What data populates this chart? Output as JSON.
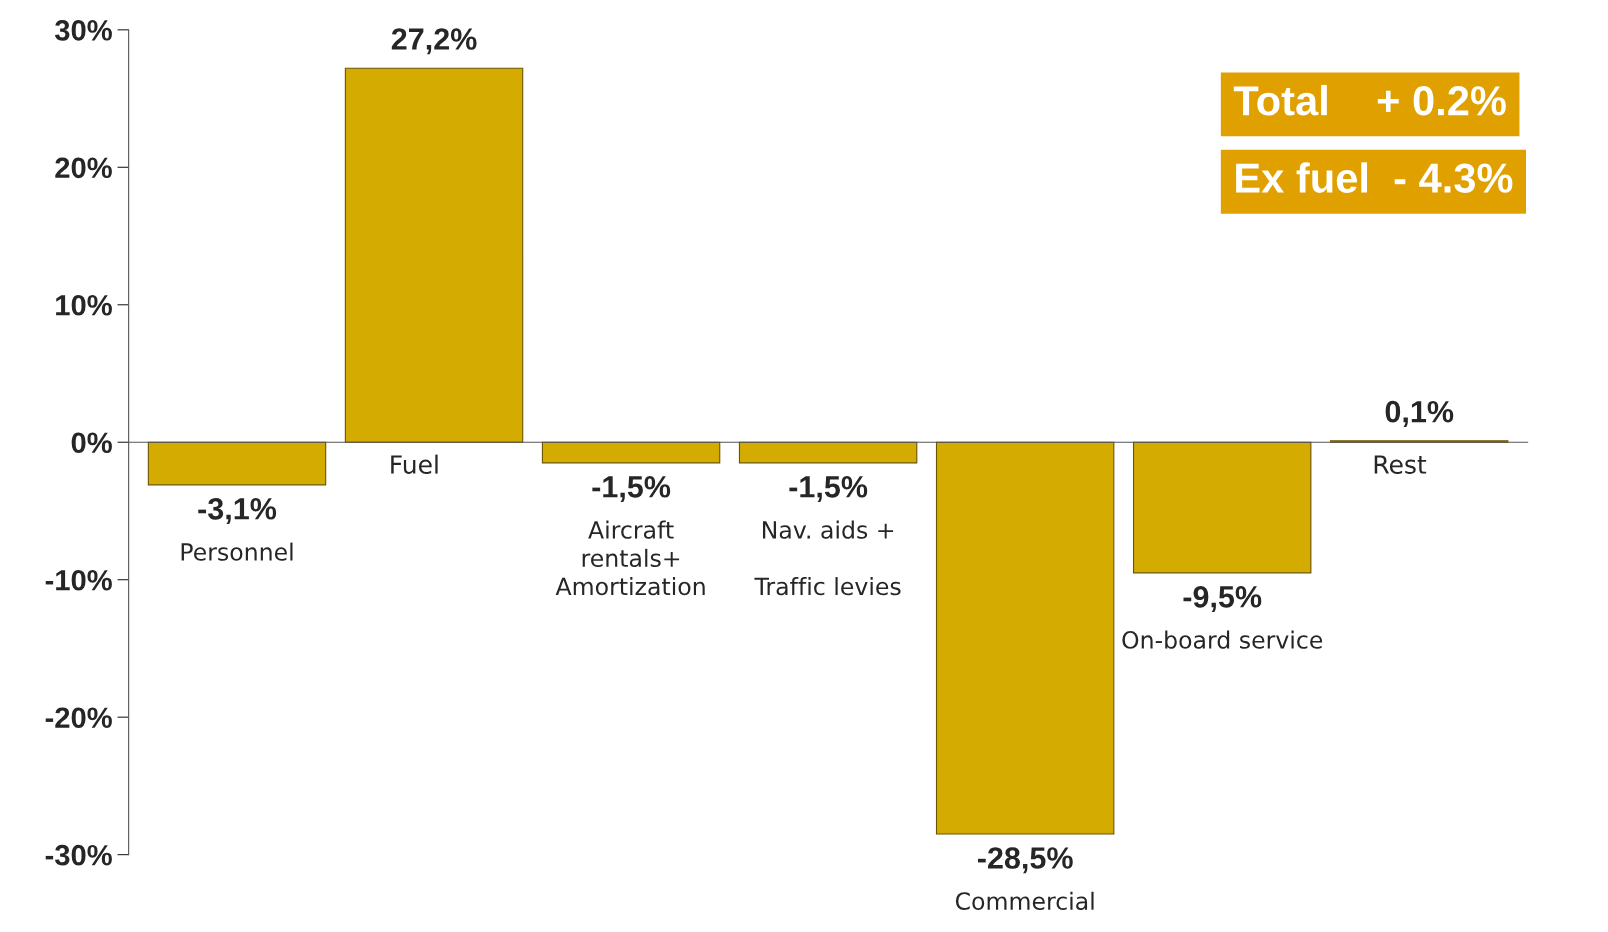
{
  "chart_data": {
    "type": "bar",
    "categories": [
      "Personnel",
      "Fuel",
      "Aircraft\nrentals+\nAmortization",
      "Nav. aids +\n\nTraffic levies",
      "Commercial",
      "On-board service",
      "Rest"
    ],
    "values": [
      -3.1,
      27.2,
      -1.5,
      -1.5,
      -28.5,
      -9.5,
      0.1
    ],
    "value_labels": [
      "-3,1%",
      "27,2%",
      "-1,5%",
      "-1,5%",
      "-28,5%",
      "-9,5%",
      "0,1%"
    ],
    "color": "#d4ab00",
    "ylim": [
      -30,
      30
    ],
    "yticks": [
      {
        "value": -30,
        "label": "-30%"
      },
      {
        "value": -20,
        "label": "-20%"
      },
      {
        "value": -10,
        "label": "-10%"
      },
      {
        "value": 0,
        "label": "0%"
      },
      {
        "value": 10,
        "label": "10%"
      },
      {
        "value": 20,
        "label": "20%"
      },
      {
        "value": 30,
        "label": "30%"
      }
    ],
    "tick_labels": "y",
    "grid": false,
    "legend": false,
    "annotations": [
      "Total    + 0.2%",
      "Ex fuel  - 4.3%"
    ]
  }
}
